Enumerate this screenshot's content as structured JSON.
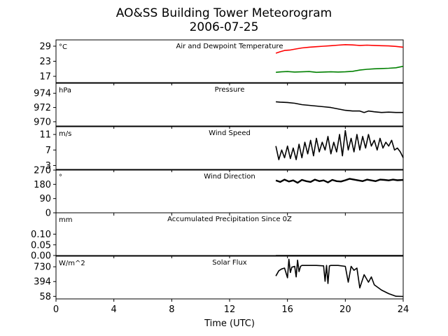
{
  "title": "AO&SS Building Tower Meteorogram",
  "date": "2006-07-25",
  "chart_data": {
    "type": "line",
    "xlabel": "Time (UTC)",
    "xlim": [
      0,
      24
    ],
    "xticks": [
      0,
      4,
      8,
      12,
      16,
      20,
      24
    ],
    "panels": [
      {
        "id": "temp",
        "title": "Air and Dewpoint Temperature",
        "unit": "°C",
        "ylim": [
          14.5,
          31.5
        ],
        "yticks": [
          17,
          23,
          29
        ],
        "series": [
          {
            "color": "#ff0000",
            "width": 1.6,
            "x": [
              15.2,
              15.5,
              15.8,
              16.2,
              16.6,
              17.0,
              17.5,
              18.0,
              18.5,
              19.0,
              19.5,
              20.0,
              20.5,
              21.0,
              21.5,
              22.0,
              22.5,
              23.0,
              23.5,
              24.0
            ],
            "y": [
              26.2,
              26.8,
              27.3,
              27.5,
              27.9,
              28.3,
              28.6,
              28.8,
              29.0,
              29.2,
              29.4,
              29.6,
              29.5,
              29.3,
              29.4,
              29.3,
              29.2,
              29.1,
              28.9,
              28.6
            ]
          },
          {
            "color": "#008000",
            "width": 1.6,
            "x": [
              15.2,
              15.6,
              16.0,
              16.5,
              17.0,
              17.5,
              18.0,
              18.5,
              19.0,
              19.5,
              20.0,
              20.5,
              21.0,
              21.5,
              22.0,
              22.5,
              23.0,
              23.5,
              24.0
            ],
            "y": [
              18.6,
              18.8,
              18.9,
              18.7,
              18.8,
              18.9,
              18.6,
              18.7,
              18.8,
              18.7,
              18.8,
              19.0,
              19.5,
              19.8,
              20.0,
              20.1,
              20.2,
              20.4,
              21.0
            ]
          }
        ]
      },
      {
        "id": "pressure",
        "title": "Pressure",
        "unit": "hPa",
        "ylim": [
          969.4,
          975.4
        ],
        "yticks": [
          970,
          972,
          974
        ],
        "series": [
          {
            "color": "#000000",
            "width": 1.6,
            "x": [
              15.2,
              15.5,
              16.0,
              16.5,
              17.0,
              17.5,
              18.0,
              18.5,
              19.0,
              19.5,
              20.0,
              20.5,
              21.0,
              21.3,
              21.6,
              22.0,
              22.5,
              23.0,
              23.5,
              24.0
            ],
            "y": [
              972.8,
              972.75,
              972.7,
              972.6,
              972.4,
              972.3,
              972.2,
              972.1,
              972.0,
              971.8,
              971.6,
              971.5,
              971.5,
              971.3,
              971.5,
              971.4,
              971.3,
              971.35,
              971.3,
              971.3
            ]
          }
        ]
      },
      {
        "id": "wspd",
        "title": "Wind Speed",
        "unit": "m/s",
        "ylim": [
          2.0,
          13.0
        ],
        "yticks": [
          3,
          7,
          11
        ],
        "series": [
          {
            "color": "#000000",
            "width": 1.6,
            "x": [
              15.2,
              15.4,
              15.6,
              15.8,
              16.0,
              16.2,
              16.4,
              16.6,
              16.8,
              17.0,
              17.2,
              17.4,
              17.6,
              17.8,
              18.0,
              18.2,
              18.4,
              18.6,
              18.8,
              19.0,
              19.2,
              19.4,
              19.6,
              19.8,
              20.0,
              20.2,
              20.4,
              20.6,
              20.8,
              21.0,
              21.2,
              21.4,
              21.6,
              21.8,
              22.0,
              22.2,
              22.4,
              22.6,
              22.8,
              23.0,
              23.2,
              23.4,
              23.6,
              23.8,
              24.0
            ],
            "y": [
              8.0,
              4.5,
              7.0,
              5.0,
              8.0,
              4.8,
              7.5,
              4.5,
              8.5,
              5.0,
              9.0,
              6.0,
              9.5,
              5.5,
              10.0,
              6.5,
              9.0,
              7.0,
              10.5,
              6.0,
              9.0,
              6.5,
              11.0,
              5.5,
              12.0,
              7.0,
              10.0,
              6.5,
              11.0,
              7.0,
              10.5,
              7.5,
              11.0,
              8.0,
              9.5,
              7.0,
              10.0,
              7.5,
              9.0,
              8.0,
              9.5,
              7.0,
              7.5,
              6.5,
              5.0
            ]
          }
        ]
      },
      {
        "id": "wdir",
        "title": "Wind Direction",
        "unit": "°",
        "ylim": [
          0,
          270
        ],
        "yticks": [
          0,
          90,
          180,
          270
        ],
        "series": [
          {
            "color": "#000000",
            "width": 2.4,
            "x": [
              15.2,
              15.5,
              15.8,
              16.1,
              16.4,
              16.7,
              17.0,
              17.3,
              17.6,
              17.9,
              18.2,
              18.5,
              18.8,
              19.1,
              19.4,
              19.7,
              20.0,
              20.3,
              20.6,
              20.9,
              21.2,
              21.5,
              21.8,
              22.1,
              22.4,
              22.7,
              23.0,
              23.3,
              23.6,
              24.0
            ],
            "y": [
              205,
              195,
              210,
              198,
              205,
              190,
              208,
              200,
              195,
              210,
              200,
              205,
              192,
              208,
              200,
              198,
              206,
              215,
              210,
              205,
              200,
              210,
              205,
              200,
              210,
              208,
              205,
              210,
              206,
              208
            ]
          }
        ]
      },
      {
        "id": "precip",
        "title": "Accumulated Precipitation Since 0Z",
        "unit": "mm",
        "ylim": [
          0,
          0.2
        ],
        "yticks": [
          0.0,
          0.05,
          0.1
        ],
        "ytick_labels": [
          "0.00",
          "0.05",
          "0.10"
        ],
        "series": [
          {
            "color": "#000000",
            "width": 1.6,
            "x": [
              15.2,
              24.0
            ],
            "y": [
              0.0,
              0.0
            ]
          }
        ]
      },
      {
        "id": "solar",
        "title": "Solar Flux",
        "unit": "W/m^2",
        "ylim": [
          0,
          970
        ],
        "yticks": [
          58,
          394,
          730
        ],
        "series": [
          {
            "color": "#000000",
            "width": 1.6,
            "x": [
              15.2,
              15.4,
              15.6,
              15.8,
              16.0,
              16.1,
              16.2,
              16.3,
              16.5,
              16.6,
              16.7,
              16.8,
              16.9,
              17.0,
              17.5,
              18.0,
              18.5,
              18.6,
              18.7,
              18.8,
              18.9,
              19.0,
              19.5,
              20.0,
              20.2,
              20.4,
              20.6,
              20.8,
              21.0,
              21.3,
              21.6,
              21.8,
              22.0,
              22.5,
              23.0,
              23.5,
              24.0
            ],
            "y": [
              520,
              640,
              680,
              700,
              480,
              900,
              600,
              720,
              740,
              500,
              880,
              620,
              740,
              760,
              760,
              760,
              750,
              400,
              760,
              350,
              750,
              760,
              760,
              740,
              380,
              740,
              650,
              700,
              250,
              550,
              380,
              500,
              320,
              200,
              120,
              60,
              55
            ]
          }
        ]
      }
    ]
  }
}
